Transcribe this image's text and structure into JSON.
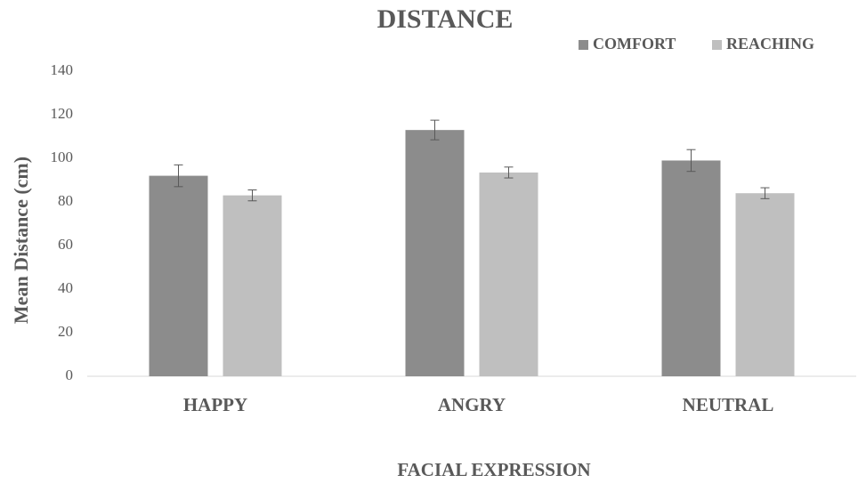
{
  "chart_data": {
    "type": "bar",
    "title": "DISTANCE",
    "x_label": "FACIAL EXPRESSION",
    "y_label": "Mean Distance (cm)",
    "categories": [
      "HAPPY",
      "ANGRY",
      "NEUTRAL"
    ],
    "series": [
      {
        "name": "COMFORT",
        "color": "#8c8c8c",
        "values": [
          92,
          113,
          99
        ],
        "errors": [
          5,
          4.5,
          5
        ]
      },
      {
        "name": "REACHING",
        "color": "#bfbfbf",
        "values": [
          83,
          93.5,
          84
        ],
        "errors": [
          2.5,
          2.5,
          2.5
        ]
      }
    ],
    "ylim": [
      0,
      140
    ],
    "yticks": [
      0,
      20,
      40,
      60,
      80,
      100,
      120,
      140
    ],
    "grid": false,
    "legend": "top-right"
  }
}
